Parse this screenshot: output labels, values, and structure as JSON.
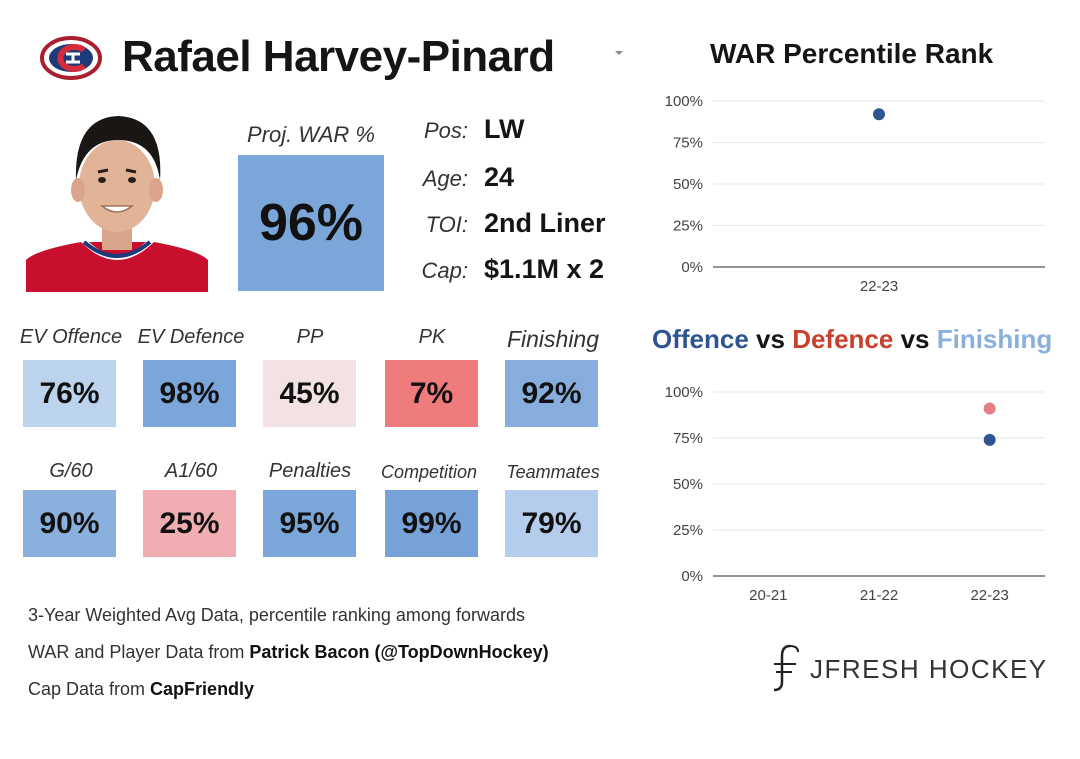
{
  "player": {
    "name": "Rafael Harvey-Pinard",
    "logo": "habs-logo",
    "headshot": "player-headshot"
  },
  "projected_war": {
    "label": "Proj. WAR %",
    "value": "96%",
    "color": "#7ba6da"
  },
  "info": [
    {
      "label": "Pos:",
      "value": "LW"
    },
    {
      "label": "Age:",
      "value": "24"
    },
    {
      "label": "TOI:",
      "value": "2nd Liner"
    },
    {
      "label": "Cap:",
      "value": "$1.1M x 2"
    }
  ],
  "stats_row1": [
    {
      "label": "EV Offence",
      "value": "76%",
      "color": "#bcd3ee"
    },
    {
      "label": "EV Defence",
      "value": "98%",
      "color": "#7ba6da"
    },
    {
      "label": "PP",
      "value": "45%",
      "color": "#f3e2e4"
    },
    {
      "label": "PK",
      "value": "7%",
      "color": "#ef7b7d"
    },
    {
      "label": "Finishing",
      "value": "92%",
      "color": "#86addc"
    }
  ],
  "stats_row2": [
    {
      "label": "G/60",
      "value": "90%",
      "color": "#8ab0de"
    },
    {
      "label": "A1/60",
      "value": "25%",
      "color": "#f1aeb2"
    },
    {
      "label": "Penalties",
      "value": "95%",
      "color": "#7ba6da"
    },
    {
      "label": "Competition",
      "value": "99%",
      "color": "#76a2d8"
    },
    {
      "label": "Teammates",
      "value": "79%",
      "color": "#b4cdec"
    }
  ],
  "notes": {
    "line1": "3-Year Weighted Avg Data, percentile ranking among forwards",
    "line2_prefix": "WAR and Player Data from ",
    "line2_bold": "Patrick Bacon (@TopDownHockey)",
    "line3_prefix": "Cap Data from ",
    "line3_bold": "CapFriendly"
  },
  "brand": {
    "name": "JFRESH HOCKEY"
  },
  "chart_data": [
    {
      "type": "scatter",
      "title": "WAR Percentile Rank",
      "categories": [
        "22-23"
      ],
      "y_ticks": [
        "0%",
        "25%",
        "50%",
        "75%",
        "100%"
      ],
      "ylim": [
        0,
        100
      ],
      "grid": true,
      "series": [
        {
          "color": "#2e5591",
          "values": [
            92
          ]
        }
      ]
    },
    {
      "type": "scatter",
      "title_parts": [
        {
          "text": "Offence",
          "color": "#2e5591"
        },
        {
          "text": " vs ",
          "color": "#151515"
        },
        {
          "text": "Defence",
          "color": "#c8402e"
        },
        {
          "text": " vs ",
          "color": "#151515"
        },
        {
          "text": "Finishing",
          "color": "#8ab0de"
        }
      ],
      "categories": [
        "20-21",
        "21-22",
        "22-23"
      ],
      "y_ticks": [
        "0%",
        "25%",
        "50%",
        "75%",
        "100%"
      ],
      "ylim": [
        0,
        100
      ],
      "grid": true,
      "series": [
        {
          "color": "#e57f86",
          "values": [
            null,
            null,
            91
          ]
        },
        {
          "color": "#2e5591",
          "values": [
            null,
            null,
            74
          ]
        }
      ]
    }
  ]
}
